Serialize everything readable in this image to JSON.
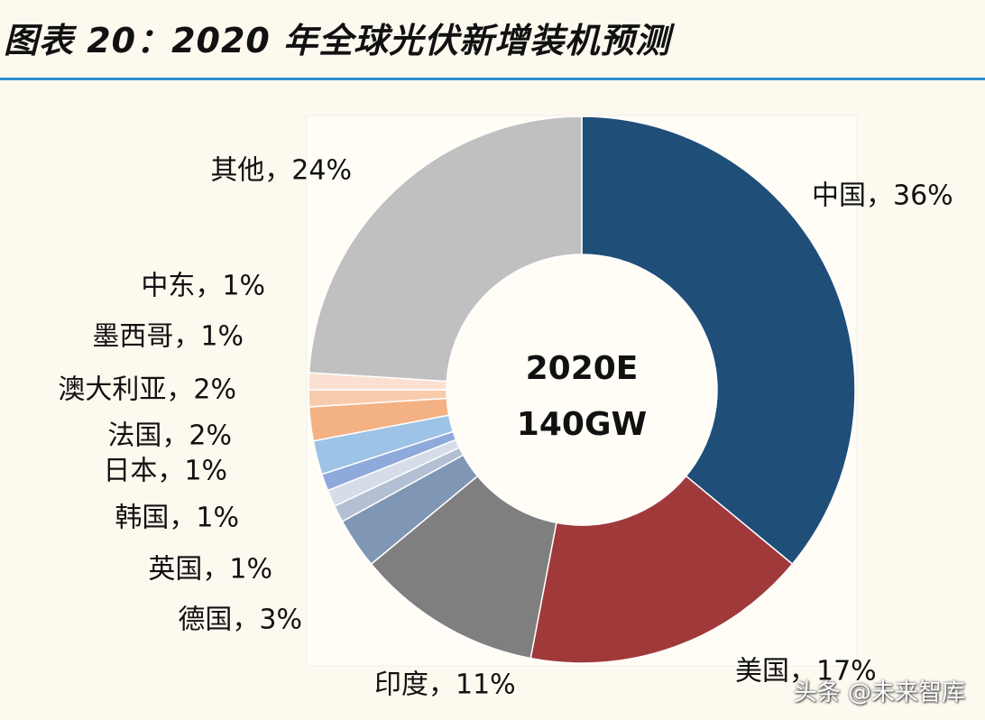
{
  "chart_data": {
    "type": "donut",
    "title": "图表 20：2020 年全球光伏新增装机预测",
    "labels": [
      "中国，36%",
      "美国，17%",
      "印度，11%",
      "德国，3%",
      "英国，1%",
      "韩国，1%",
      "日本，1%",
      "法国，2%",
      "澳大利亚，2%",
      "墨西哥，1%",
      "中东，1%",
      "其他，24%"
    ],
    "values": [
      36,
      17,
      11,
      3,
      1,
      1,
      1,
      2,
      2,
      1,
      1,
      24
    ],
    "colors": [
      "#1f4e79",
      "#a0393a",
      "#7f7f7f",
      "#7f96b4",
      "#b3bfd3",
      "#d6dde9",
      "#8ea9db",
      "#9dc3e6",
      "#f4b183",
      "#f8cbad",
      "#fbe0d1",
      "#c0c0c0"
    ],
    "center_text": [
      "2020E",
      "140GW"
    ]
  },
  "watermark": "头条 @未来智库"
}
